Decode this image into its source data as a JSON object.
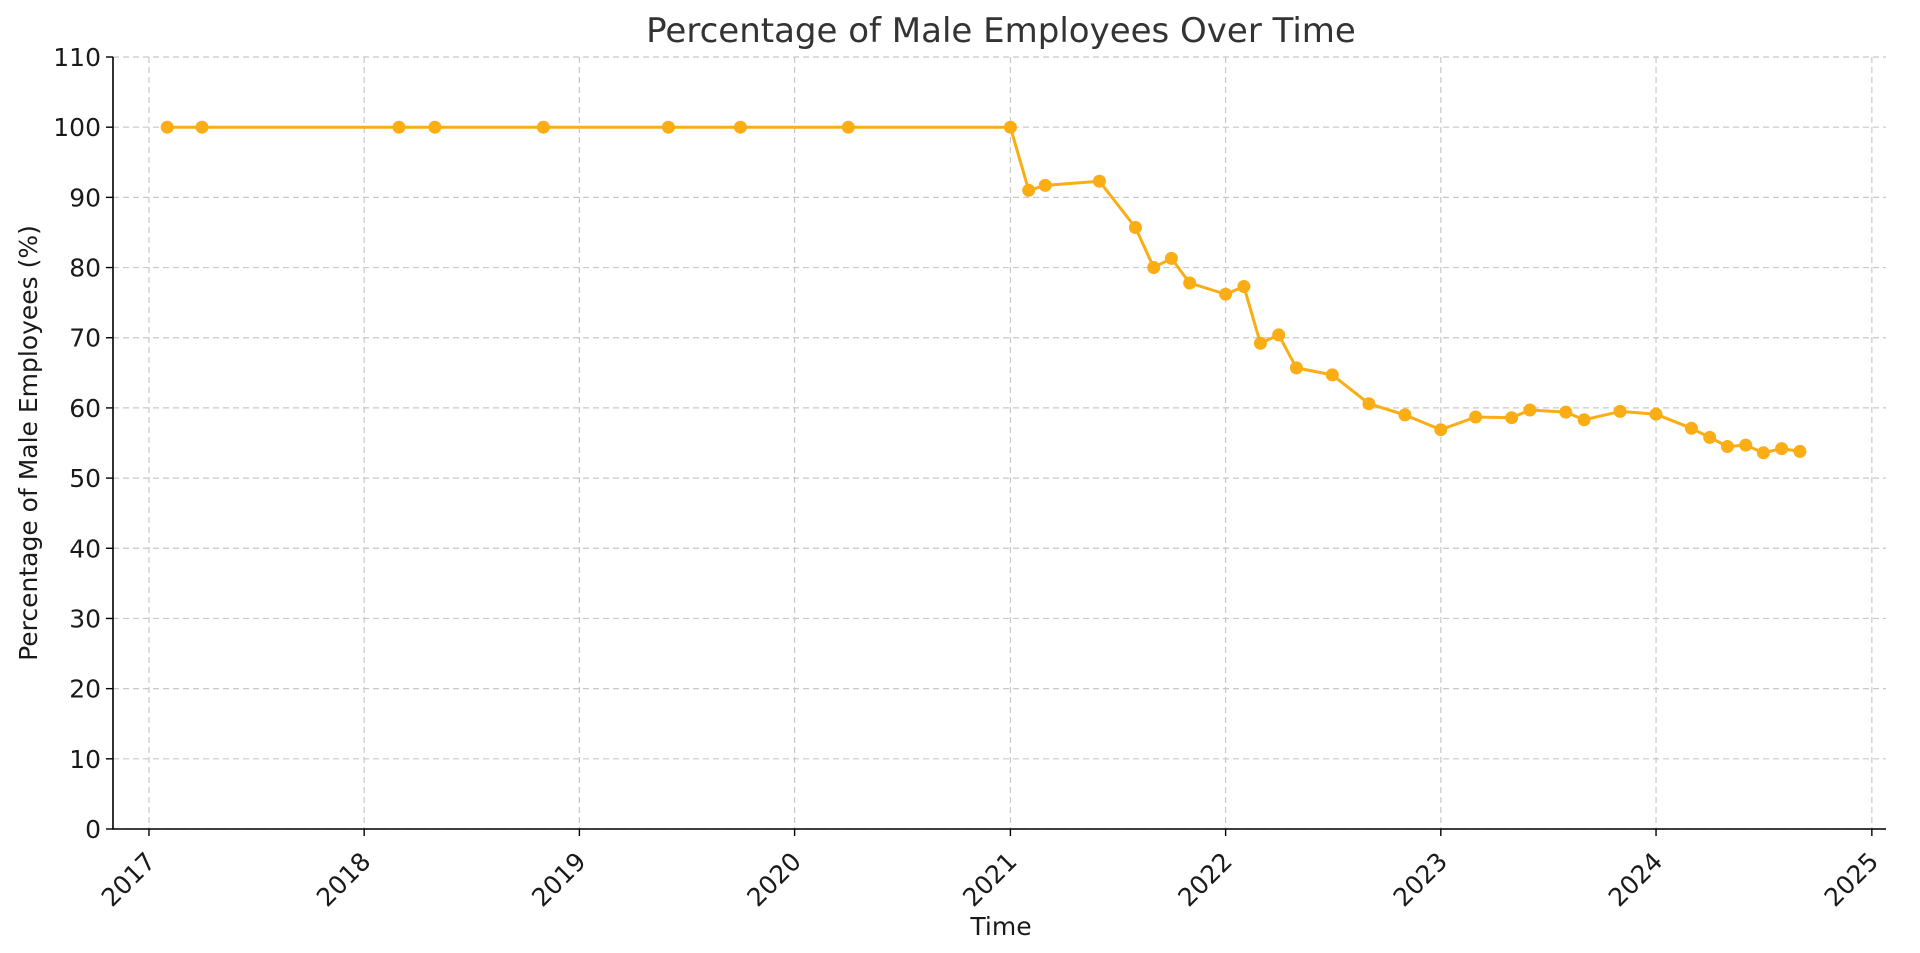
{
  "chart_data": {
    "type": "line",
    "title": "Percentage of Male Employees Over Time",
    "xlabel": "Time",
    "ylabel": "Percentage of Male Employees (%)",
    "xlim": [
      "2016-11-01",
      "2025-01-25"
    ],
    "ylim": [
      0,
      110
    ],
    "x_ticks": [
      "2017",
      "2018",
      "2019",
      "2020",
      "2021",
      "2022",
      "2023",
      "2024",
      "2025"
    ],
    "y_ticks": [
      0,
      10,
      20,
      30,
      40,
      50,
      60,
      70,
      80,
      90,
      100,
      110
    ],
    "grid": true,
    "line_color": "#FAAD14",
    "series": [
      {
        "x": [
          "2017-02-01",
          "2017-04-01",
          "2018-03-01",
          "2018-05-01",
          "2018-11-01",
          "2019-06-01",
          "2019-10-01",
          "2020-04-01",
          "2021-01-01",
          "2021-02-01",
          "2021-03-01",
          "2021-06-01",
          "2021-08-01",
          "2021-09-01",
          "2021-10-01",
          "2021-11-01",
          "2022-01-01",
          "2022-02-01",
          "2022-03-01",
          "2022-04-01",
          "2022-05-01",
          "2022-07-01",
          "2022-09-01",
          "2022-11-01",
          "2023-01-01",
          "2023-03-01",
          "2023-05-01",
          "2023-06-01",
          "2023-08-01",
          "2023-09-01",
          "2023-11-01",
          "2024-01-01",
          "2024-03-01",
          "2024-04-01",
          "2024-05-01",
          "2024-06-01",
          "2024-07-01",
          "2024-08-01",
          "2024-09-01"
        ],
        "y": [
          100,
          100,
          100,
          100,
          100,
          100,
          100,
          100,
          100,
          91,
          91.7,
          92.3,
          85.7,
          80,
          81.3,
          77.8,
          76.2,
          77.3,
          69.2,
          70.4,
          65.7,
          64.7,
          60.6,
          59,
          56.9,
          58.7,
          58.6,
          59.7,
          59.4,
          58.3,
          59.5,
          59.1,
          57.1,
          55.8,
          54.5,
          54.7,
          53.6,
          54.2,
          53.8
        ]
      }
    ]
  }
}
